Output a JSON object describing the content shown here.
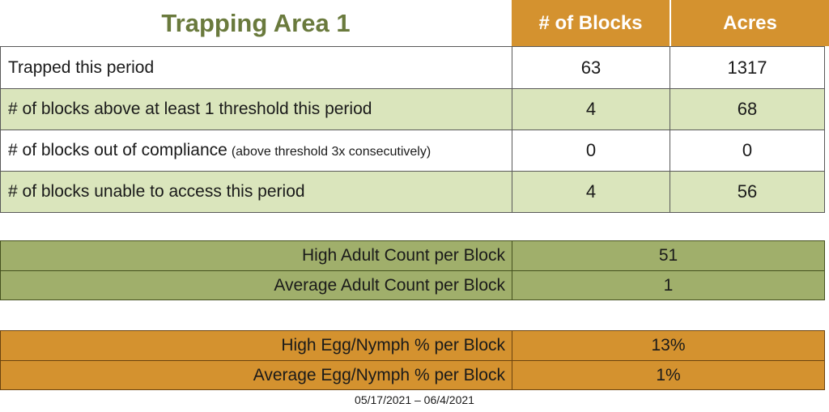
{
  "header": {
    "title": "Trapping Area 1",
    "columns": [
      "# of Blocks",
      "Acres"
    ]
  },
  "main_table": {
    "rows": [
      {
        "label": "Trapped this period",
        "note": "",
        "blocks": "63",
        "acres": "1317"
      },
      {
        "label": "# of blocks above at least 1 threshold this period",
        "note": "",
        "blocks": "4",
        "acres": "68"
      },
      {
        "label": "# of blocks out of compliance",
        "note": "(above threshold 3x consecutively)",
        "blocks": "0",
        "acres": "0"
      },
      {
        "label": "# of blocks unable to access this period",
        "note": "",
        "blocks": "4",
        "acres": "56"
      }
    ]
  },
  "adult_counts": {
    "rows": [
      {
        "label": "High Adult Count per Block",
        "value": "51"
      },
      {
        "label": "Average Adult Count per Block",
        "value": "1"
      }
    ]
  },
  "egg_nymph": {
    "rows": [
      {
        "label": "High Egg/Nymph % per Block",
        "value": "13%"
      },
      {
        "label": "Average Egg/Nymph % per Block",
        "value": "1%"
      }
    ]
  },
  "footer": {
    "date_range": "05/17/2021 – 06/4/2021"
  },
  "colors": {
    "orange": "#d4922f",
    "light_green": "#dae5bc",
    "olive": "#a0af6b",
    "title_green": "#6a7a3d",
    "header_text": "#ffffff",
    "text": "#1a1a1a",
    "border_dark": "#595959",
    "border_olive": "#45511f",
    "border_brown": "#6b430f"
  }
}
